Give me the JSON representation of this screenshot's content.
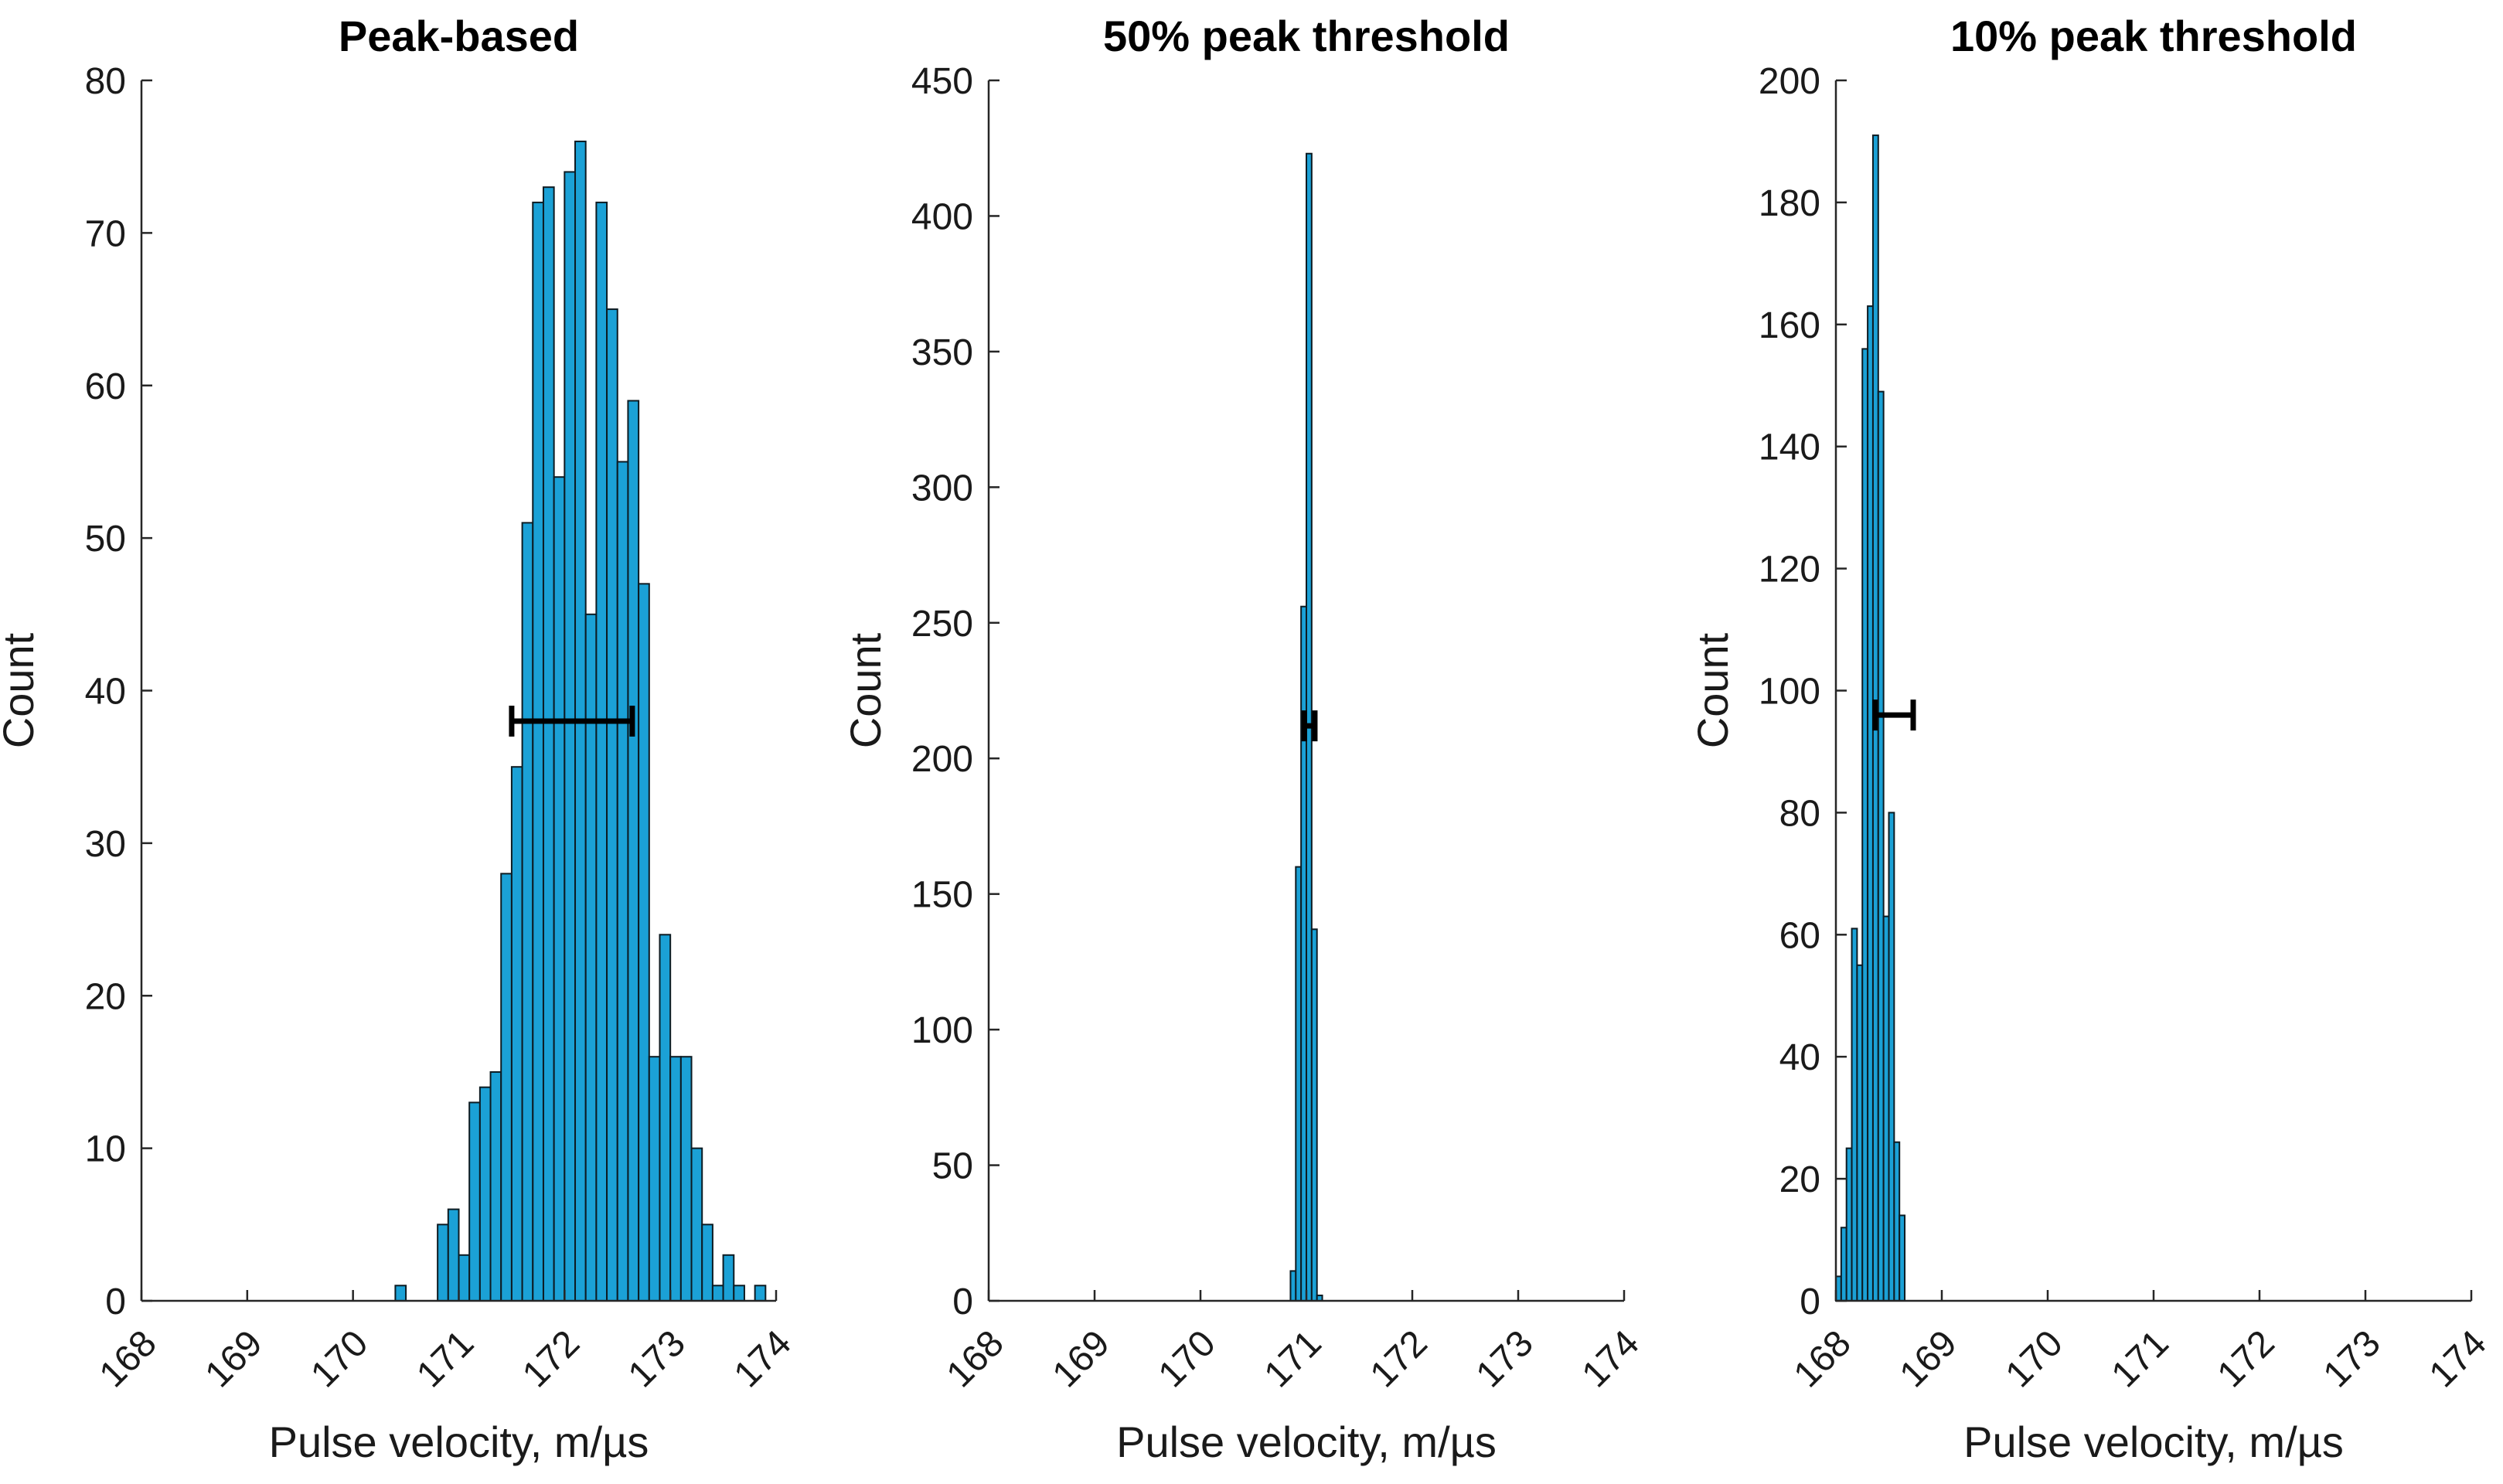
{
  "chart_data": [
    {
      "type": "bar",
      "title": "Peak-based",
      "xlabel": "Pulse velocity, m/µs",
      "ylabel": "Count",
      "xlim": [
        168,
        174
      ],
      "ylim": [
        0,
        80
      ],
      "xticks": [
        "168",
        "169",
        "170",
        "171",
        "172",
        "173",
        "174"
      ],
      "yticks": [
        "0",
        "10",
        "20",
        "30",
        "40",
        "50",
        "60",
        "70",
        "80"
      ],
      "bin_start": 170.2,
      "bin_width": 0.1,
      "counts": [
        0,
        0,
        1,
        0,
        0,
        0,
        5,
        6,
        3,
        13,
        14,
        15,
        28,
        35,
        51,
        72,
        73,
        54,
        74,
        76,
        45,
        72,
        65,
        55,
        59,
        47,
        16,
        24,
        16,
        16,
        10,
        5,
        1,
        3,
        1,
        0,
        1
      ],
      "error_bar": {
        "center": 172.07,
        "low": 171.5,
        "high": 172.64,
        "y": 38
      }
    },
    {
      "type": "bar",
      "title": "50% peak threshold",
      "xlabel": "Pulse velocity, m/µs",
      "ylabel": "Count",
      "xlim": [
        168,
        174
      ],
      "ylim": [
        0,
        450
      ],
      "xticks": [
        "168",
        "169",
        "170",
        "171",
        "172",
        "173",
        "174"
      ],
      "yticks": [
        "0",
        "50",
        "100",
        "150",
        "200",
        "250",
        "300",
        "350",
        "400",
        "450"
      ],
      "bin_start": 170.85,
      "bin_width": 0.05,
      "counts": [
        11,
        160,
        256,
        423,
        137,
        2
      ],
      "error_bar": {
        "center": 171.03,
        "low": 170.98,
        "high": 171.08,
        "y": 212
      }
    },
    {
      "type": "bar",
      "title": "10% peak threshold",
      "xlabel": "Pulse velocity, m/µs",
      "ylabel": "Count",
      "xlim": [
        168,
        174
      ],
      "ylim": [
        0,
        200
      ],
      "xticks": [
        "168",
        "169",
        "170",
        "171",
        "172",
        "173",
        "174"
      ],
      "yticks": [
        "0",
        "20",
        "40",
        "60",
        "80",
        "100",
        "120",
        "140",
        "160",
        "180",
        "200"
      ],
      "bin_start": 168,
      "bin_width": 0.05,
      "counts": [
        4,
        12,
        25,
        61,
        55,
        156,
        163,
        191,
        149,
        63,
        80,
        26,
        14
      ],
      "error_bar": {
        "center": 168.55,
        "low": 168.37,
        "high": 168.73,
        "y": 96
      }
    }
  ]
}
